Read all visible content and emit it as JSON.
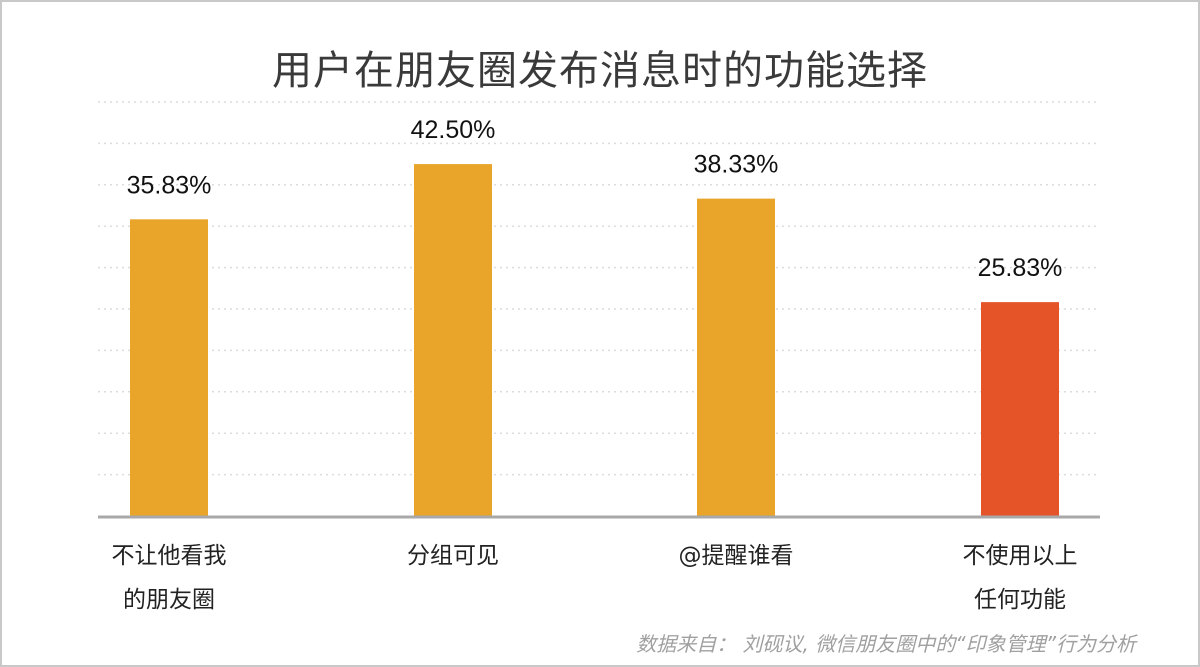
{
  "chart_data": {
    "type": "bar",
    "title": "用户在朋友圈发布消息时的功能选择",
    "categories": [
      [
        "不让他看我",
        "的朋友圈"
      ],
      [
        "分组可见"
      ],
      [
        "@提醒谁看"
      ],
      [
        "不使用以上",
        "任何功能"
      ]
    ],
    "values": [
      35.83,
      42.5,
      38.33,
      25.83
    ],
    "value_labels": [
      "35.83%",
      "42.50%",
      "38.33%",
      "25.83%"
    ],
    "colors": [
      "#E9A42A",
      "#E9A42A",
      "#E9A42A",
      "#E45428"
    ],
    "ylim": [
      0,
      50
    ],
    "grid": true,
    "source": "数据来自： 刘砚议, 微信朋友圈中的“印象管理”行为分析"
  }
}
